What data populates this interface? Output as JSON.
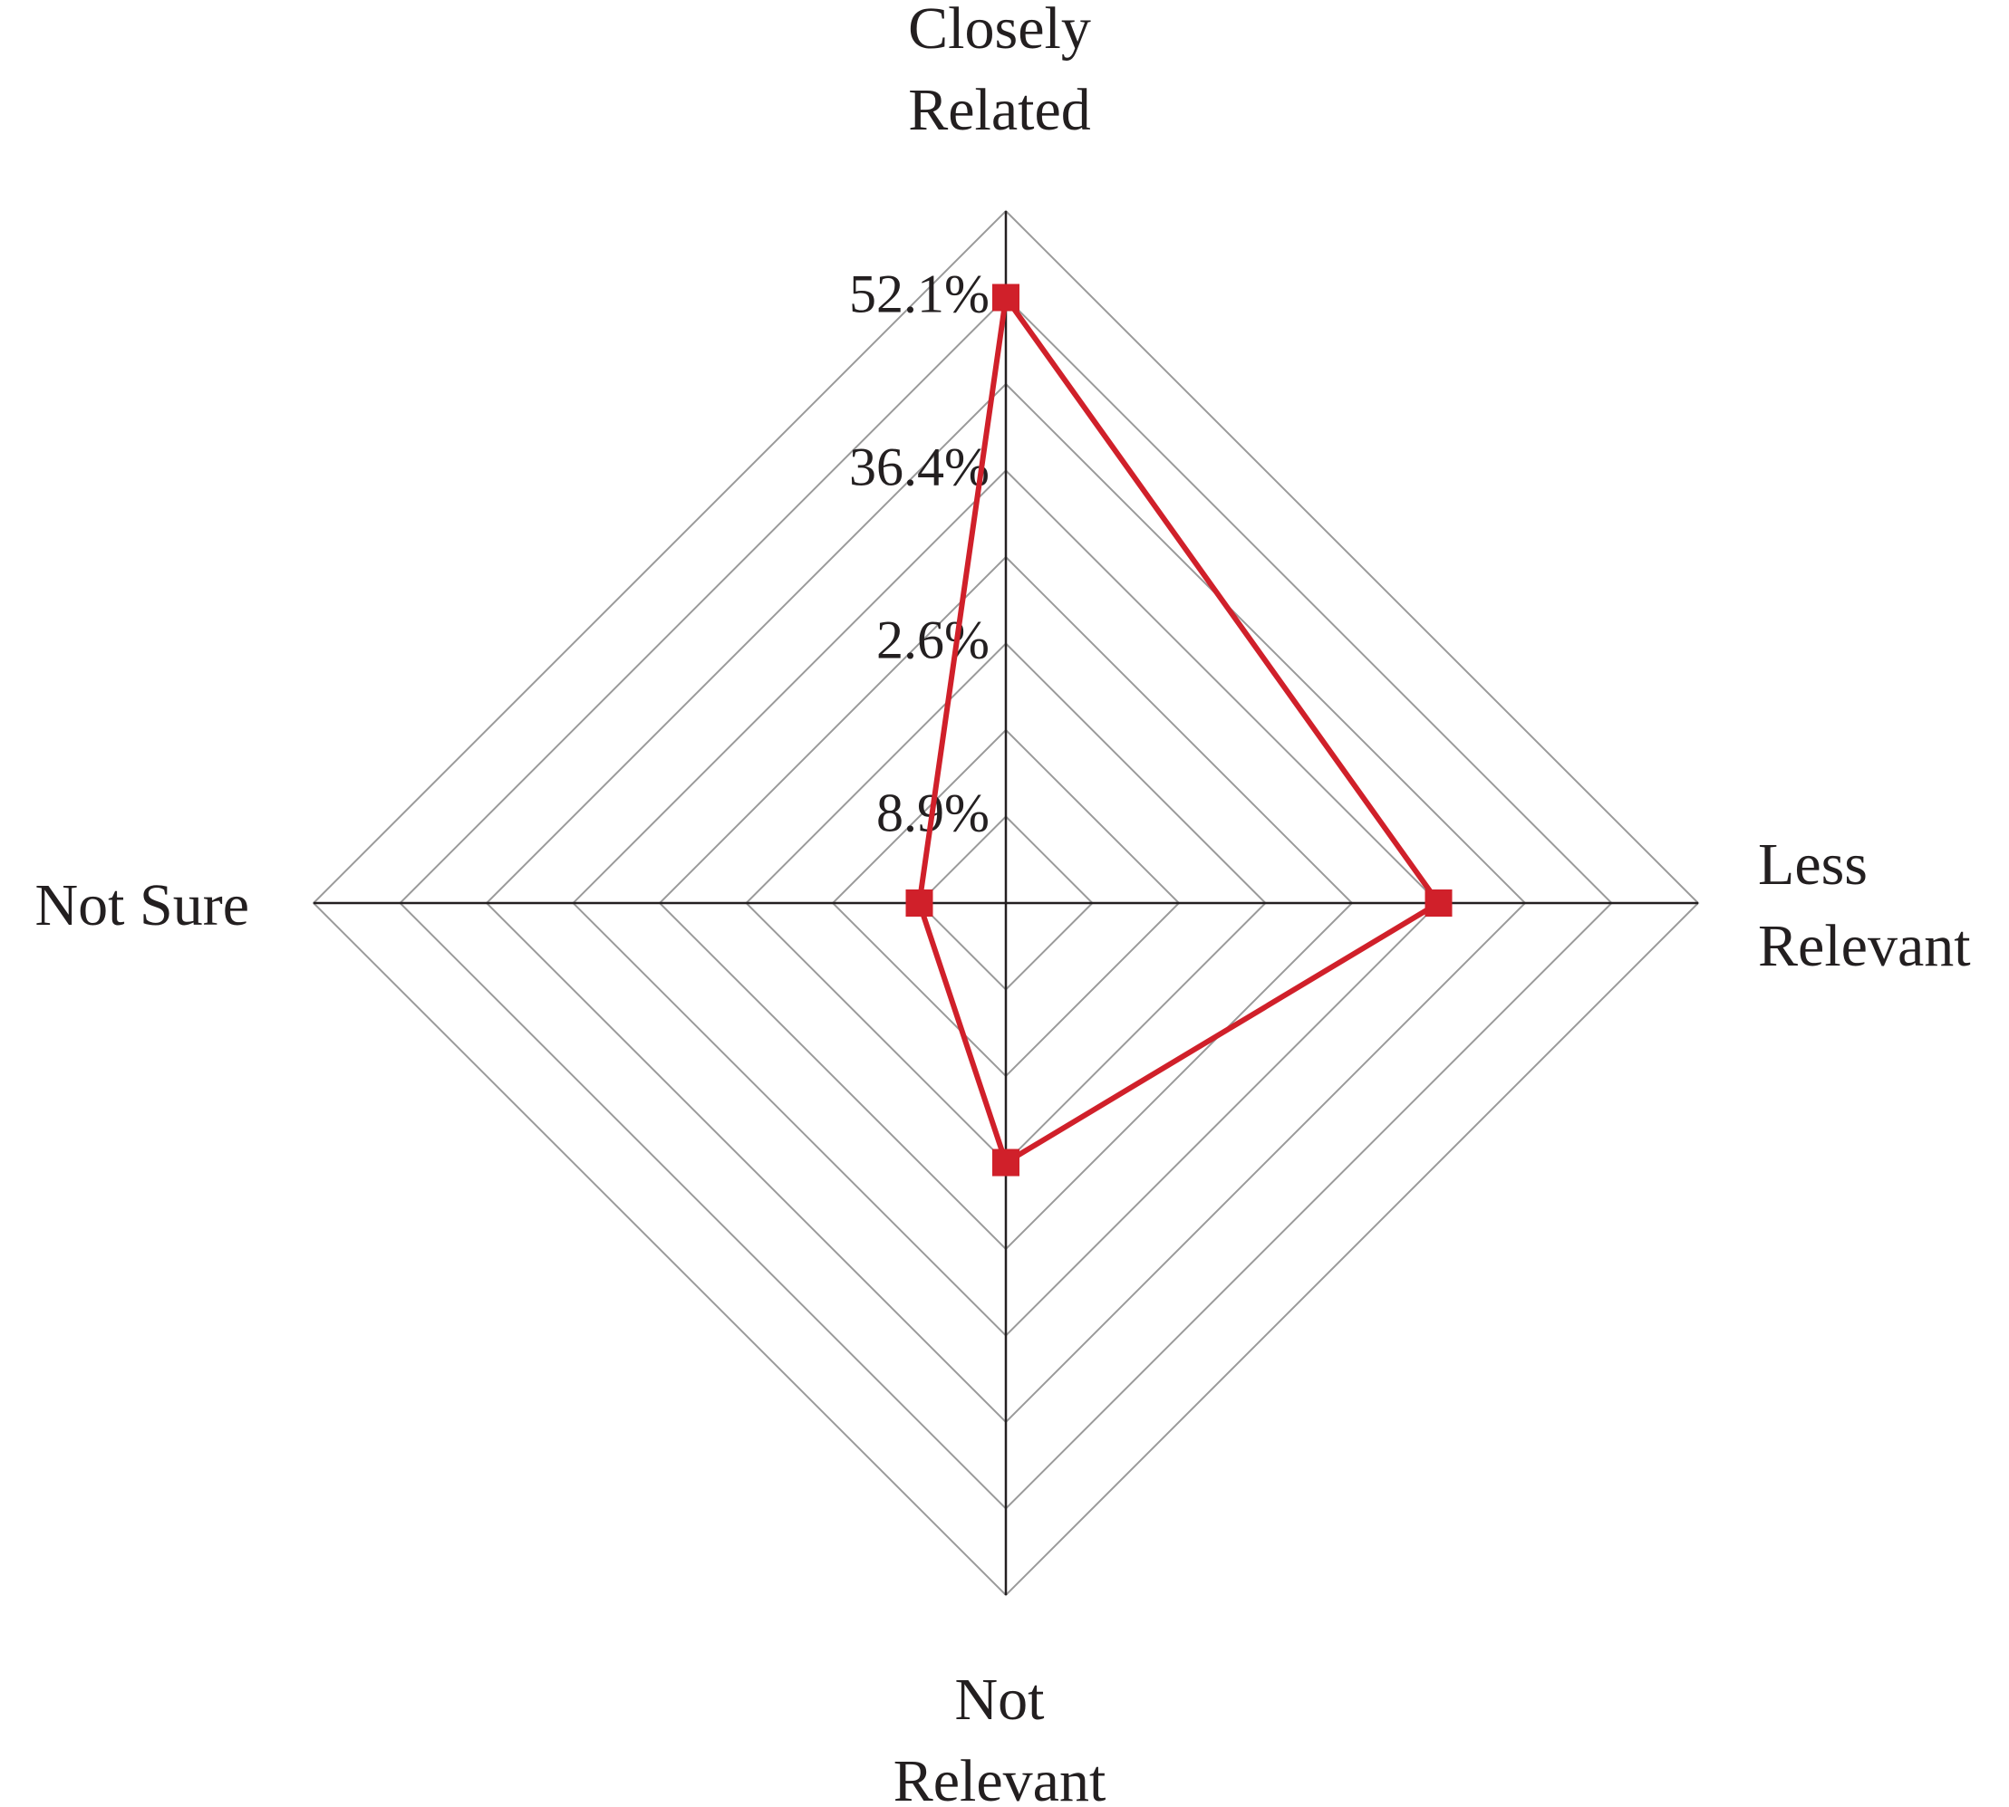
{
  "chart_data": {
    "type": "radar",
    "categories": [
      "Closely Related",
      "Less Relevant",
      "Not Relevant",
      "Not Sure"
    ],
    "values": [
      7,
      5,
      3,
      1
    ],
    "color": "#d0202a",
    "rlim": [
      0,
      8
    ],
    "rticks": [
      1,
      2,
      3,
      4,
      5,
      6,
      7,
      8
    ],
    "tick_labels": [
      {
        "value": 1,
        "label": "8.9%"
      },
      {
        "value": 3,
        "label": "2.6%"
      },
      {
        "value": 5,
        "label": "36.4%"
      },
      {
        "value": 7,
        "label": "52.1%"
      }
    ],
    "grid": true
  }
}
